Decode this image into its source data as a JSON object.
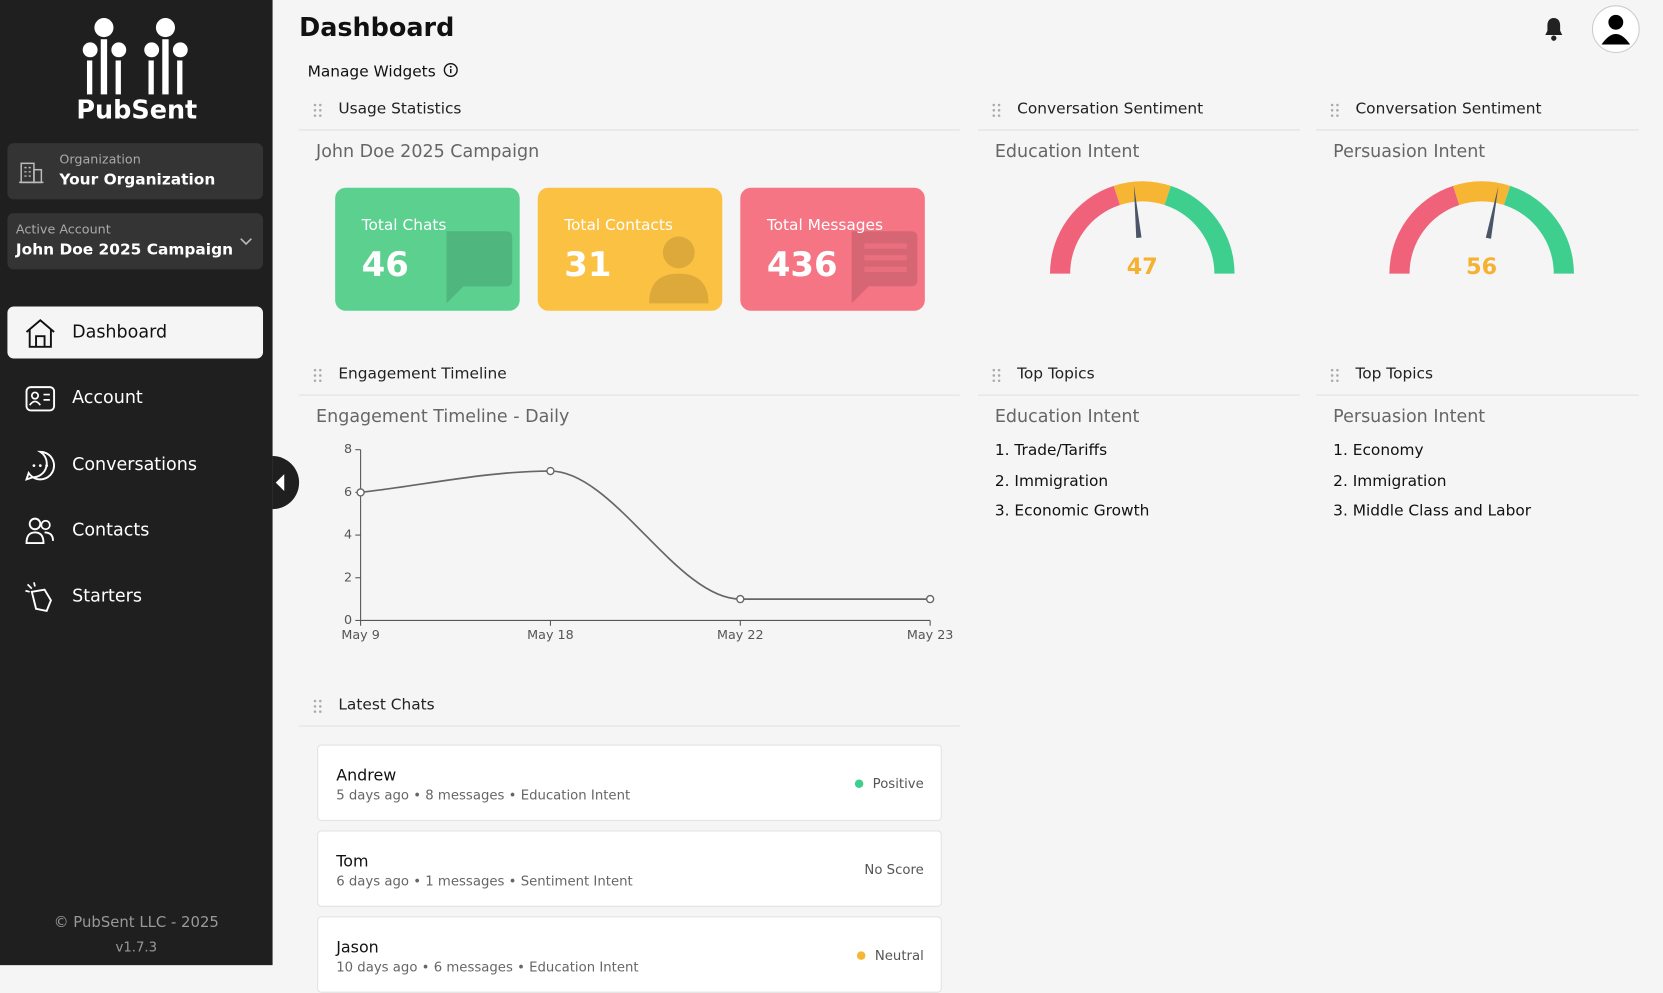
{
  "sidebar": {
    "logo": "PubSent",
    "organization": {
      "label": "Organization",
      "name": "Your Organization"
    },
    "account": {
      "label": "Active Account",
      "name": "John Doe 2025 Campaign"
    },
    "nav": [
      {
        "label": "Dashboard",
        "active": true
      },
      {
        "label": "Account"
      },
      {
        "label": "Conversations"
      },
      {
        "label": "Contacts"
      },
      {
        "label": "Starters"
      }
    ],
    "copyright": "© PubSent LLC - 2025",
    "version": "v1.7.3"
  },
  "header": {
    "title": "Dashboard",
    "manage": "Manage Widgets"
  },
  "usage": {
    "title": "Usage Statistics",
    "subtitle": "John Doe 2025 Campaign",
    "stats": [
      {
        "label": "Total Chats",
        "value": 46,
        "color": "#5bd08f"
      },
      {
        "label": "Total Contacts",
        "value": 31,
        "color": "#fbc143"
      },
      {
        "label": "Total Messages",
        "value": 436,
        "color": "#f57585"
      }
    ]
  },
  "chart_data": [
    {
      "type": "gauge",
      "title": "Conversation Sentiment",
      "subtitle": "Education Intent",
      "value": 47,
      "lim": [
        0,
        100
      ]
    },
    {
      "type": "gauge",
      "title": "Conversation Sentiment",
      "subtitle": "Persuasion Intent",
      "value": 56,
      "lim": [
        0,
        100
      ]
    },
    {
      "type": "line",
      "title": "Engagement Timeline",
      "subtitle": "Engagement Timeline - Daily",
      "categories": [
        "May 9",
        "May 18",
        "May 22",
        "May 23"
      ],
      "values": [
        6,
        7,
        1,
        1
      ],
      "ylim": [
        0,
        8
      ],
      "yticks": [
        0,
        2,
        4,
        6,
        8
      ],
      "color": "#666666"
    }
  ],
  "topics": [
    {
      "title": "Top Topics",
      "subtitle": "Education Intent",
      "items": [
        "1. Trade/Tariffs",
        "2. Immigration",
        "3. Economic Growth"
      ]
    },
    {
      "title": "Top Topics",
      "subtitle": "Persuasion Intent",
      "items": [
        "1. Economy",
        "2. Immigration",
        "3. Middle Class and Labor"
      ]
    }
  ],
  "chats": {
    "title": "Latest Chats",
    "items": [
      {
        "name": "Andrew",
        "time": "5 days ago",
        "messages": "8 messages",
        "intent": "Education Intent",
        "sentiment": "Positive",
        "color": "#3ecf8e"
      },
      {
        "name": "Tom",
        "time": "6 days ago",
        "messages": "1 messages",
        "intent": "Sentiment Intent",
        "sentiment": "No Score"
      },
      {
        "name": "Jason",
        "time": "10 days ago",
        "messages": "6 messages",
        "intent": "Education Intent",
        "sentiment": "Neutral",
        "color": "#f7b534"
      }
    ]
  }
}
